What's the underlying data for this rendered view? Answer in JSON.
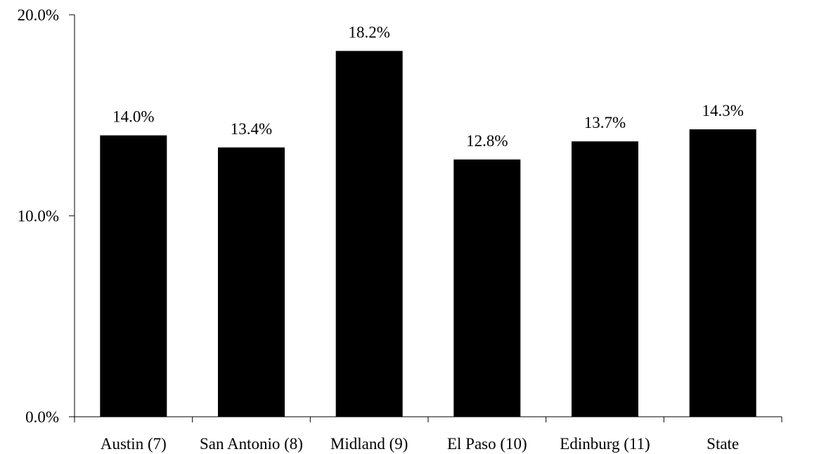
{
  "chart_data": {
    "type": "bar",
    "categories": [
      "Austin (7)",
      "San Antonio (8)",
      "Midland (9)",
      "El Paso (10)",
      "Edinburg (11)",
      "State"
    ],
    "values": [
      14.0,
      13.4,
      18.2,
      12.8,
      13.7,
      14.3
    ],
    "data_labels": [
      "14.0%",
      "13.4%",
      "18.2%",
      "12.8%",
      "13.7%",
      "14.3%"
    ],
    "yticks": [
      0,
      10,
      20
    ],
    "ytick_labels": [
      "0.0%",
      "10.0%",
      "20.0%"
    ],
    "ylim": [
      0,
      20
    ],
    "title": "",
    "xlabel": "",
    "ylabel": "",
    "grid": false,
    "legend": "none",
    "bar_color": "#000000",
    "axis_color": "#000000"
  }
}
